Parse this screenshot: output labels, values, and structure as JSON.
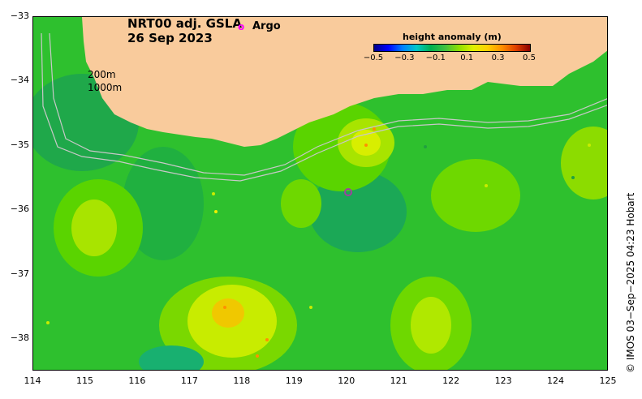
{
  "title": {
    "line1": "NRT00 adj. GSLA",
    "line2": "26 Sep 2023"
  },
  "legend": {
    "argo_symbol": "o",
    "argo_label": "Argo",
    "isobath_200": "200m",
    "isobath_1000": "1000m"
  },
  "colorbar": {
    "label": "height anomaly (m)",
    "ticks": [
      "−0.5",
      "−0.3",
      "−0.1",
      "0.1",
      "0.3",
      "0.5"
    ],
    "colors": [
      "#00008b",
      "#0000ff",
      "#0080ff",
      "#00c8c8",
      "#00b050",
      "#40c040",
      "#90e000",
      "#e0f000",
      "#ffd000",
      "#ff9000",
      "#e04000",
      "#8b0000"
    ]
  },
  "axes": {
    "x_ticks": [
      "114",
      "115",
      "116",
      "117",
      "118",
      "119",
      "120",
      "121",
      "122",
      "123",
      "124",
      "125"
    ],
    "y_ticks": [
      "−33",
      "−34",
      "−35",
      "−36",
      "−37",
      "−38"
    ],
    "x_range": [
      114,
      125
    ],
    "y_range": [
      -38.5,
      -33
    ]
  },
  "colors": {
    "land": "#f9cb9c",
    "argo": "#ff00ff",
    "isobath": "#c8c8c8"
  },
  "credit": "© IMOS 03−Sep−2025 04:23 Hobart"
}
